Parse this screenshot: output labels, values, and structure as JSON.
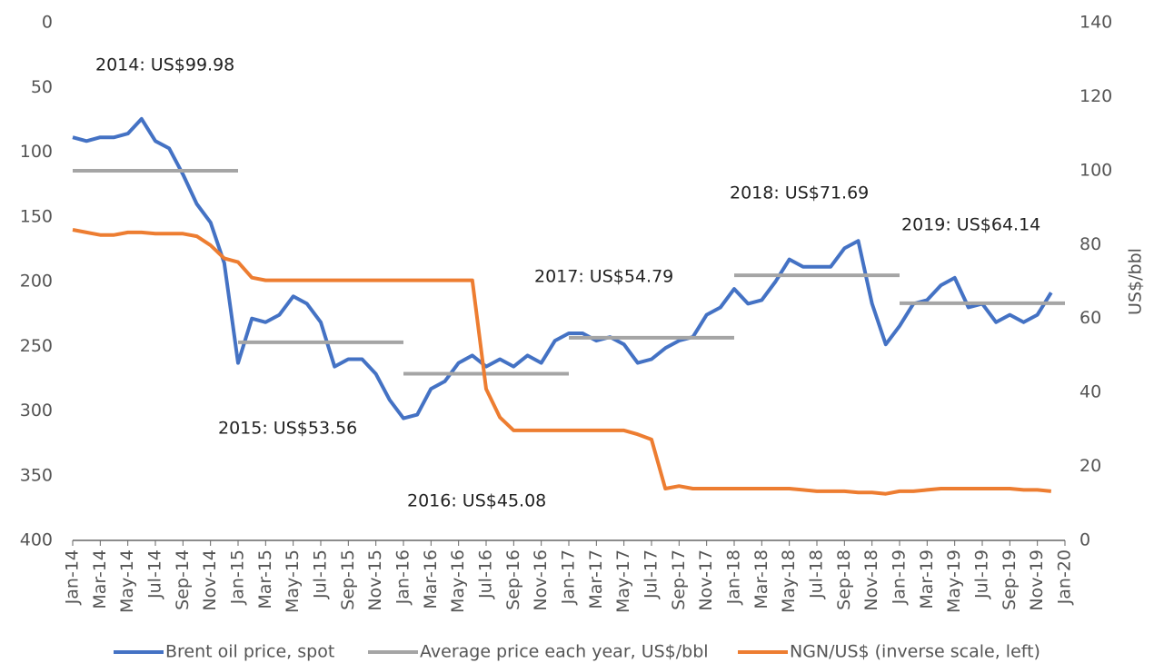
{
  "chart_data": {
    "type": "line",
    "y2label": "US$/bbl",
    "invert_y": true,
    "ylim": [
      0,
      400
    ],
    "yticks": [
      0,
      50,
      100,
      150,
      200,
      250,
      300,
      350,
      400
    ],
    "y2lim": [
      0,
      140
    ],
    "y2ticks": [
      0,
      20,
      40,
      60,
      80,
      100,
      120,
      140
    ],
    "xlim": [
      "2014-01",
      "2020-01"
    ],
    "xticks": [
      {
        "value": "2014-01",
        "label": "Jan-14"
      },
      {
        "value": "2014-03",
        "label": "Mar-14"
      },
      {
        "value": "2014-05",
        "label": "May-14"
      },
      {
        "value": "2014-07",
        "label": "Jul-14"
      },
      {
        "value": "2014-09",
        "label": "Sep-14"
      },
      {
        "value": "2014-11",
        "label": "Nov-14"
      },
      {
        "value": "2015-01",
        "label": "Jan-15"
      },
      {
        "value": "2015-03",
        "label": "Mar-15"
      },
      {
        "value": "2015-05",
        "label": "May-15"
      },
      {
        "value": "2015-07",
        "label": "Jul-15"
      },
      {
        "value": "2015-09",
        "label": "Sep-15"
      },
      {
        "value": "2015-11",
        "label": "Nov-15"
      },
      {
        "value": "2016-01",
        "label": "Jan-16"
      },
      {
        "value": "2016-03",
        "label": "Mar-16"
      },
      {
        "value": "2016-05",
        "label": "May-16"
      },
      {
        "value": "2016-07",
        "label": "Jul-16"
      },
      {
        "value": "2016-09",
        "label": "Sep-16"
      },
      {
        "value": "2016-11",
        "label": "Nov-16"
      },
      {
        "value": "2017-01",
        "label": "Jan-17"
      },
      {
        "value": "2017-03",
        "label": "Mar-17"
      },
      {
        "value": "2017-05",
        "label": "May-17"
      },
      {
        "value": "2017-07",
        "label": "Jul-17"
      },
      {
        "value": "2017-09",
        "label": "Sep-17"
      },
      {
        "value": "2017-11",
        "label": "Nov-17"
      },
      {
        "value": "2018-01",
        "label": "Jan-18"
      },
      {
        "value": "2018-03",
        "label": "Mar-18"
      },
      {
        "value": "2018-05",
        "label": "May-18"
      },
      {
        "value": "2018-07",
        "label": "Jul-18"
      },
      {
        "value": "2018-09",
        "label": "Sep-18"
      },
      {
        "value": "2018-11",
        "label": "Nov-18"
      },
      {
        "value": "2019-01",
        "label": "Jan-19"
      },
      {
        "value": "2019-03",
        "label": "Mar-19"
      },
      {
        "value": "2019-05",
        "label": "May-19"
      },
      {
        "value": "2019-07",
        "label": "Jul-19"
      },
      {
        "value": "2019-09",
        "label": "Sep-19"
      },
      {
        "value": "2019-11",
        "label": "Nov-19"
      },
      {
        "value": "2020-01",
        "label": "Jan-20"
      }
    ],
    "x": [
      "2014-01",
      "2014-02",
      "2014-03",
      "2014-04",
      "2014-05",
      "2014-06",
      "2014-07",
      "2014-08",
      "2014-09",
      "2014-10",
      "2014-11",
      "2014-12",
      "2015-01",
      "2015-02",
      "2015-03",
      "2015-04",
      "2015-05",
      "2015-06",
      "2015-07",
      "2015-08",
      "2015-09",
      "2015-10",
      "2015-11",
      "2015-12",
      "2016-01",
      "2016-02",
      "2016-03",
      "2016-04",
      "2016-05",
      "2016-06",
      "2016-07",
      "2016-08",
      "2016-09",
      "2016-10",
      "2016-11",
      "2016-12",
      "2017-01",
      "2017-02",
      "2017-03",
      "2017-04",
      "2017-05",
      "2017-06",
      "2017-07",
      "2017-08",
      "2017-09",
      "2017-10",
      "2017-11",
      "2017-12",
      "2018-01",
      "2018-02",
      "2018-03",
      "2018-04",
      "2018-05",
      "2018-06",
      "2018-07",
      "2018-08",
      "2018-09",
      "2018-10",
      "2018-11",
      "2018-12",
      "2019-01",
      "2019-02",
      "2019-03",
      "2019-04",
      "2019-05",
      "2019-06",
      "2019-07",
      "2019-08",
      "2019-09",
      "2019-10",
      "2019-11",
      "2019-12"
    ],
    "series": [
      {
        "name": "Brent oil price, spot",
        "color": "#4472c4",
        "axis": "y2",
        "values": [
          109,
          108,
          109,
          109,
          110,
          114,
          108,
          106,
          99,
          91,
          86,
          75,
          48,
          60,
          59,
          61,
          66,
          64,
          59,
          47,
          49,
          49,
          45,
          38,
          33,
          34,
          41,
          43,
          48,
          50,
          47,
          49,
          47,
          50,
          48,
          54,
          56,
          56,
          54,
          55,
          53,
          48,
          49,
          52,
          54,
          55,
          61,
          63,
          68,
          64,
          65,
          70,
          76,
          74,
          74,
          74,
          79,
          81,
          64,
          53,
          58,
          64,
          65,
          69,
          71,
          63,
          64,
          59,
          61,
          59,
          61,
          67
        ]
      },
      {
        "name": "Average price each year, US$/bbl",
        "color": "#a5a5a5",
        "axis": "y2",
        "x": [
          "2014",
          "2015",
          "2016",
          "2017",
          "2018",
          "2019"
        ],
        "values": [
          99.98,
          53.56,
          45.08,
          54.79,
          71.69,
          64.14
        ],
        "value_labels": [
          "2014: US$99.98",
          "2015: US$53.56",
          "2016: US$45.08",
          "2017: US$54.79",
          "2018: US$71.69",
          "2019: US$64.14"
        ]
      },
      {
        "name": "NGN/US$ (inverse scale, left)",
        "color": "#ed7d31",
        "values": [
          160,
          162,
          164,
          164,
          162,
          162,
          163,
          163,
          163,
          165,
          172,
          182,
          185,
          197,
          199,
          199,
          199,
          199,
          199,
          199,
          199,
          199,
          199,
          199,
          199,
          199,
          199,
          199,
          199,
          199,
          283,
          305,
          315,
          315,
          315,
          315,
          315,
          315,
          315,
          315,
          315,
          318,
          322,
          360,
          358,
          360,
          360,
          360,
          360,
          360,
          360,
          360,
          360,
          361,
          362,
          362,
          362,
          363,
          363,
          364,
          362,
          362,
          361,
          360,
          360,
          360,
          360,
          360,
          360,
          361,
          361,
          362
        ]
      }
    ]
  }
}
